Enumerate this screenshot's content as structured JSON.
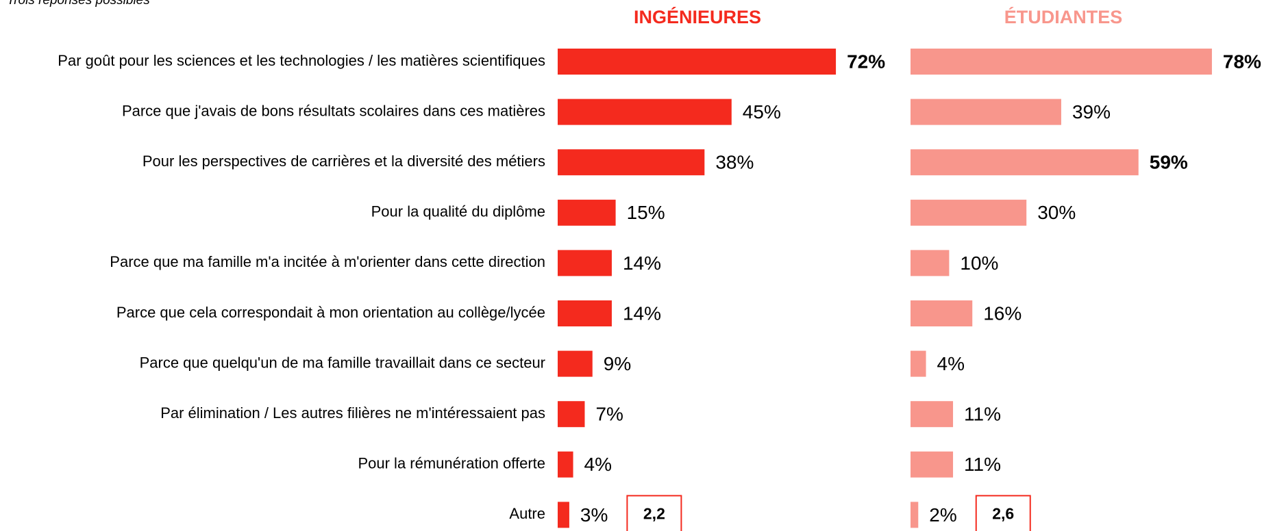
{
  "subtitle": "Trois réponses possibles",
  "chart_data": [
    {
      "type": "bar",
      "orientation": "horizontal",
      "title": "INGÉNIEURES",
      "color": "#f42a1e",
      "categories": [
        "Par goût pour les sciences et les technologies / les matières scientifiques",
        "Parce que j'avais de bons résultats scolaires dans ces matières",
        "Pour les perspectives de carrières et la diversité des métiers",
        "Pour la qualité du diplôme",
        "Parce que ma famille m'a incitée à m'orienter dans cette direction",
        "Parce que cela correspondait à mon orientation au collège/lycée",
        "Parce que quelqu'un de ma famille travaillait dans ce secteur",
        "Par élimination / Les autres filières ne m'intéressaient pas",
        "Pour la rémunération offerte",
        "Autre"
      ],
      "values": [
        72,
        45,
        38,
        15,
        14,
        14,
        9,
        7,
        4,
        3
      ],
      "value_labels": [
        "72%",
        "45%",
        "38%",
        "15%",
        "14%",
        "14%",
        "9%",
        "7%",
        "4%",
        "3%"
      ],
      "emphasized": [
        0
      ],
      "annotation": "2,2"
    },
    {
      "type": "bar",
      "orientation": "horizontal",
      "title": "ÉTUDIANTES",
      "color": "#f8968c",
      "values": [
        78,
        39,
        59,
        30,
        10,
        16,
        4,
        11,
        11,
        2
      ],
      "value_labels": [
        "78%",
        "39%",
        "59%",
        "30%",
        "10%",
        "16%",
        "4%",
        "11%",
        "11%",
        "2%"
      ],
      "emphasized": [
        0,
        2
      ],
      "annotation": "2,6"
    }
  ]
}
